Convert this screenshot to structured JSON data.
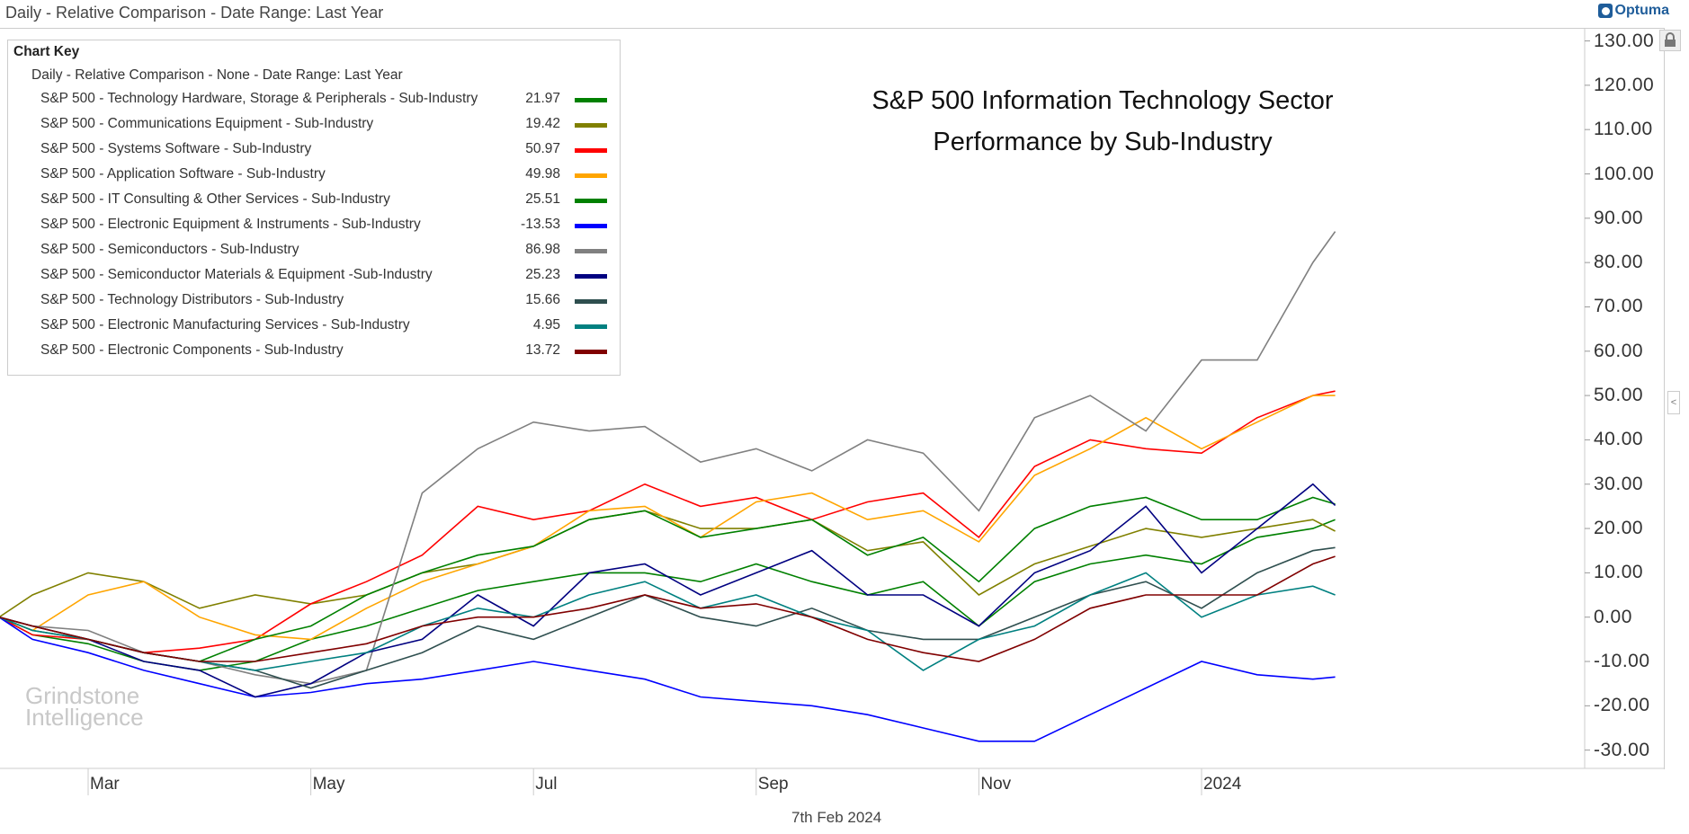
{
  "header": {
    "title": "Daily - Relative Comparison - Date Range: Last Year",
    "brand": "Optuma"
  },
  "watermark": {
    "line1": "Grindstone",
    "line2": "Intelligence"
  },
  "footer": {
    "date": "7th Feb 2024"
  },
  "colors": {
    "grid": "#cccccc"
  },
  "chart_data": {
    "type": "line",
    "title": [
      "S&P 500 Information Technology Sector",
      "Performance by Sub-Industry"
    ],
    "legend_title": "Chart Key",
    "legend_subtitle": "Daily - Relative Comparison - None - Date Range: Last Year",
    "legend_placement": "top-left",
    "xlabel": "",
    "ylabel": "",
    "x_unit": "months since Feb 1 2023",
    "x": [
      0.2,
      0.5,
      1,
      1.5,
      2,
      2.5,
      3,
      3.5,
      4,
      4.5,
      5,
      5.5,
      6,
      6.5,
      7,
      7.5,
      8,
      8.5,
      9,
      9.5,
      10,
      10.5,
      11,
      11.5,
      12,
      12.2
    ],
    "x_ticks": [
      {
        "label": "Mar",
        "at": 1
      },
      {
        "label": "May",
        "at": 3
      },
      {
        "label": "Jul",
        "at": 5
      },
      {
        "label": "Sep",
        "at": 7
      },
      {
        "label": "Nov",
        "at": 9
      },
      {
        "label": "2024",
        "at": 11
      }
    ],
    "ylim": [
      -30,
      130
    ],
    "y_ticks": [
      "130.00",
      "120.00",
      "110.00",
      "100.00",
      "90.00",
      "80.00",
      "70.00",
      "60.00",
      "50.00",
      "40.00",
      "30.00",
      "20.00",
      "10.00",
      "0.00",
      "-10.00",
      "-20.00",
      "-30.00"
    ],
    "series": [
      {
        "name": "S&P 500 - Technology Hardware, Storage & Peripherals - Sub-Industry",
        "last": "21.97",
        "color": "#008000",
        "values": [
          0,
          -4,
          -6,
          -10,
          -12,
          -10,
          -5,
          -2,
          2,
          6,
          8,
          10,
          10,
          8,
          12,
          8,
          5,
          8,
          -2,
          8,
          12,
          14,
          12,
          18,
          20,
          22
        ]
      },
      {
        "name": "S&P 500 - Communications Equipment - Sub-Industry",
        "last": "19.42",
        "color": "#808000",
        "values": [
          0,
          5,
          10,
          8,
          2,
          5,
          3,
          5,
          10,
          12,
          16,
          22,
          24,
          20,
          20,
          22,
          15,
          17,
          5,
          12,
          16,
          20,
          18,
          20,
          22,
          19.4
        ]
      },
      {
        "name": "S&P 500 - Systems Software - Sub-Industry",
        "last": "50.97",
        "color": "#ff0000",
        "values": [
          0,
          -4,
          -5,
          -8,
          -7,
          -5,
          3,
          8,
          14,
          25,
          22,
          24,
          30,
          25,
          27,
          22,
          26,
          28,
          18,
          34,
          40,
          38,
          37,
          45,
          50,
          51
        ]
      },
      {
        "name": "S&P 500 - Application Software - Sub-Industry",
        "last": "49.98",
        "color": "#ffa500",
        "values": [
          0,
          -3,
          5,
          8,
          0,
          -4,
          -5,
          2,
          8,
          12,
          16,
          24,
          25,
          18,
          26,
          28,
          22,
          24,
          17,
          32,
          38,
          45,
          38,
          44,
          50,
          50
        ]
      },
      {
        "name": "S&P 500 - IT Consulting & Other Services - Sub-Industry",
        "last": "25.51",
        "color": "#008000",
        "values": [
          0,
          -3,
          -5,
          -8,
          -10,
          -5,
          -2,
          5,
          10,
          14,
          16,
          22,
          24,
          18,
          20,
          22,
          14,
          18,
          8,
          20,
          25,
          27,
          22,
          22,
          27,
          25.5
        ]
      },
      {
        "name": "S&P 500 - Electronic Equipment & Instruments - Sub-Industry",
        "last": "-13.53",
        "color": "#0000ff",
        "values": [
          0,
          -5,
          -8,
          -12,
          -15,
          -18,
          -17,
          -15,
          -14,
          -12,
          -10,
          -12,
          -14,
          -18,
          -19,
          -20,
          -22,
          -25,
          -28,
          -28,
          -22,
          -16,
          -10,
          -13,
          -14,
          -13.5
        ]
      },
      {
        "name": "S&P 500 - Semiconductors - Sub-Industry",
        "last": "86.98",
        "color": "#808080",
        "values": [
          0,
          -2,
          -3,
          -8,
          -10,
          -13,
          -15,
          -12,
          28,
          38,
          44,
          42,
          43,
          35,
          38,
          33,
          40,
          37,
          24,
          45,
          50,
          42,
          58,
          58,
          80,
          87
        ]
      },
      {
        "name": "S&P 500 - Semiconductor Materials & Equipment -Sub-Industry",
        "last": "25.23",
        "color": "#000080",
        "values": [
          0,
          -2,
          -5,
          -10,
          -12,
          -18,
          -15,
          -8,
          -5,
          5,
          -2,
          10,
          12,
          5,
          10,
          15,
          5,
          5,
          -2,
          10,
          15,
          25,
          10,
          20,
          30,
          25.2
        ]
      },
      {
        "name": "S&P 500 - Technology Distributors - Sub-Industry",
        "last": "15.66",
        "color": "#2f4f4f",
        "values": [
          0,
          -2,
          -5,
          -8,
          -10,
          -12,
          -16,
          -12,
          -8,
          -2,
          -5,
          0,
          5,
          0,
          -2,
          2,
          -3,
          -5,
          -5,
          0,
          5,
          8,
          2,
          10,
          15,
          15.7
        ]
      },
      {
        "name": "S&P 500 - Electronic Manufacturing Services - Sub-Industry",
        "last": "4.95",
        "color": "#008080",
        "values": [
          0,
          -3,
          -5,
          -8,
          -10,
          -12,
          -10,
          -8,
          -2,
          2,
          0,
          5,
          8,
          2,
          5,
          0,
          -3,
          -12,
          -5,
          -2,
          5,
          10,
          0,
          5,
          7,
          5
        ]
      },
      {
        "name": "S&P 500 - Electronic Components - Sub-Industry",
        "last": "13.72",
        "color": "#800000",
        "values": [
          0,
          -2,
          -5,
          -8,
          -10,
          -10,
          -8,
          -6,
          -2,
          0,
          0,
          2,
          5,
          2,
          3,
          0,
          -5,
          -8,
          -10,
          -5,
          2,
          5,
          5,
          5,
          12,
          13.7
        ]
      }
    ]
  }
}
